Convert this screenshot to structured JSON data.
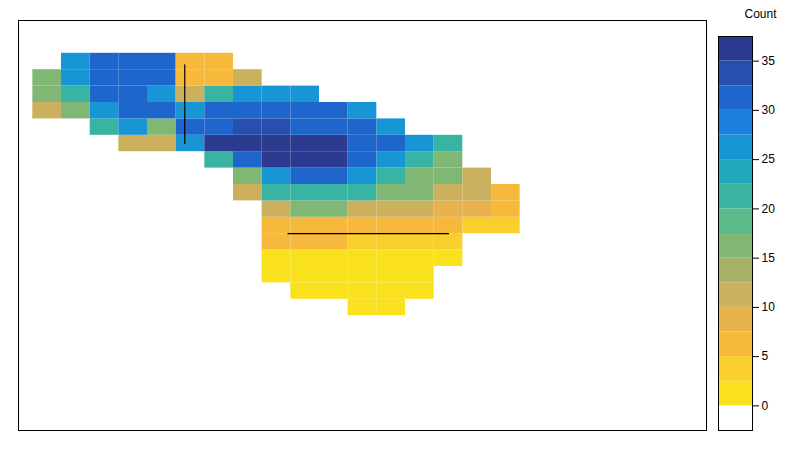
{
  "chart_data": {
    "type": "heatmap",
    "tick_labels": false,
    "xlim": [
      -170,
      -50
    ],
    "ylim": [
      25,
      75
    ],
    "x": [
      -165,
      -160,
      -155,
      -150,
      -145,
      -140,
      -135,
      -130,
      -125,
      -120,
      -115,
      -110,
      -105,
      -100,
      -95,
      -90,
      -85
    ],
    "y": [
      40,
      42,
      44,
      46,
      48,
      50,
      52,
      54,
      56,
      58,
      60,
      62,
      64,
      66,
      68,
      70
    ],
    "values": [
      [
        null,
        null,
        null,
        null,
        null,
        null,
        null,
        null,
        null,
        null,
        null,
        0,
        0,
        null,
        null,
        null,
        null
      ],
      [
        null,
        null,
        null,
        null,
        null,
        null,
        null,
        null,
        null,
        0,
        0,
        0,
        0,
        0,
        null,
        null,
        null
      ],
      [
        null,
        null,
        null,
        null,
        null,
        null,
        null,
        null,
        0,
        2,
        0,
        0,
        0,
        0,
        null,
        null,
        null
      ],
      [
        null,
        null,
        null,
        null,
        null,
        null,
        null,
        null,
        2,
        2,
        2,
        2,
        0,
        2,
        0,
        null,
        null
      ],
      [
        null,
        null,
        null,
        null,
        null,
        null,
        null,
        null,
        5,
        5,
        5,
        3,
        3,
        3,
        3,
        null,
        null
      ],
      [
        null,
        null,
        null,
        null,
        null,
        null,
        null,
        null,
        7,
        7,
        7,
        5,
        5,
        5,
        5,
        3,
        3
      ],
      [
        null,
        null,
        null,
        null,
        null,
        null,
        null,
        null,
        12,
        15,
        15,
        12,
        10,
        10,
        8,
        8,
        5
      ],
      [
        null,
        null,
        null,
        null,
        null,
        null,
        null,
        10,
        20,
        22,
        22,
        20,
        17,
        15,
        12,
        10,
        7
      ],
      [
        null,
        null,
        null,
        null,
        null,
        null,
        null,
        15,
        27,
        30,
        30,
        27,
        22,
        17,
        15,
        12,
        null
      ],
      [
        null,
        null,
        null,
        null,
        null,
        null,
        20,
        32,
        35,
        35,
        35,
        32,
        27,
        22,
        17,
        null,
        null
      ],
      [
        null,
        null,
        null,
        10,
        10,
        25,
        35,
        35,
        36,
        35,
        35,
        32,
        30,
        25,
        20,
        null,
        null
      ],
      [
        null,
        null,
        20,
        25,
        15,
        30,
        32,
        33,
        33,
        32,
        30,
        30,
        25,
        null,
        null,
        null,
        null
      ],
      [
        10,
        15,
        25,
        30,
        30,
        25,
        30,
        30,
        30,
        30,
        30,
        25,
        null,
        null,
        null,
        null,
        null
      ],
      [
        15,
        20,
        30,
        30,
        25,
        10,
        20,
        25,
        25,
        25,
        null,
        null,
        null,
        null,
        null,
        null,
        null
      ],
      [
        15,
        25,
        30,
        30,
        30,
        5,
        5,
        10,
        null,
        null,
        null,
        null,
        null,
        null,
        null,
        null,
        null
      ],
      [
        null,
        25,
        30,
        30,
        30,
        5,
        5,
        null,
        null,
        null,
        null,
        null,
        null,
        null,
        null,
        null,
        null
      ]
    ],
    "boundaries": [
      [
        [
          -123,
          49
        ],
        [
          -95,
          49
        ]
      ],
      [
        [
          -141,
          60
        ],
        [
          -141,
          69.6
        ]
      ]
    ],
    "colorbar": {
      "label": "Count",
      "range": [
        -2.5,
        37.5
      ],
      "ticks": [
        0,
        5,
        10,
        15,
        20,
        25,
        30,
        35
      ],
      "colors": [
        "#ffffff",
        "#f9e11e",
        "#f8cf2d",
        "#f6b93c",
        "#e8b24c",
        "#cbb05e",
        "#a8b168",
        "#80b774",
        "#5bb98a",
        "#3ab4a2",
        "#22a8bd",
        "#1895d4",
        "#1a7fdf",
        "#1f66cc",
        "#274fae",
        "#2c3a8f"
      ]
    }
  }
}
